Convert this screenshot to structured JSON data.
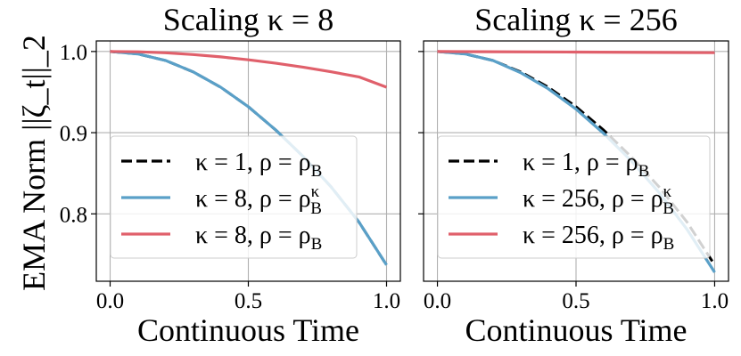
{
  "figure": {
    "ylabel": "EMA Norm ||ζ_t||_2"
  },
  "chart_data": [
    {
      "type": "line",
      "title": "Scaling κ = 8",
      "xlabel": "Continuous Time",
      "ylabel": "EMA Norm ||ζ_t||_2",
      "xlim": [
        -0.05,
        1.05
      ],
      "ylim": [
        0.717,
        1.013
      ],
      "xticks": [
        0.0,
        0.5,
        1.0
      ],
      "xtick_labels": [
        "0.0",
        "0.5",
        "1.0"
      ],
      "yticks": [
        0.8,
        0.9,
        1.0
      ],
      "ytick_labels": [
        "0.8",
        "0.9",
        "1.0"
      ],
      "grid": true,
      "legend_placement": "lower-left",
      "series": [
        {
          "name": "κ = 1, ρ = ρ_B",
          "color": "#000000",
          "style": "dashed",
          "x": [
            0.0,
            0.1,
            0.2,
            0.3,
            0.4,
            0.5,
            0.6,
            0.7,
            0.8,
            0.9,
            1.0
          ],
          "y": [
            1.0,
            0.997,
            0.989,
            0.975,
            0.956,
            0.932,
            0.903,
            0.87,
            0.833,
            0.79,
            0.737
          ]
        },
        {
          "name": "κ = 8, ρ = ρ_B^κ",
          "color": "#5aa0c8",
          "style": "solid",
          "x": [
            0.0,
            0.1,
            0.2,
            0.3,
            0.4,
            0.5,
            0.6,
            0.7,
            0.8,
            0.9,
            1.0
          ],
          "y": [
            1.0,
            0.997,
            0.989,
            0.975,
            0.956,
            0.932,
            0.903,
            0.87,
            0.833,
            0.79,
            0.737
          ]
        },
        {
          "name": "κ = 8, ρ = ρ_B",
          "color": "#e0606b",
          "style": "solid",
          "x": [
            0.0,
            0.1,
            0.2,
            0.3,
            0.4,
            0.5,
            0.6,
            0.7,
            0.8,
            0.9,
            1.0
          ],
          "y": [
            1.0,
            0.9996,
            0.9984,
            0.9962,
            0.9934,
            0.9898,
            0.9855,
            0.9806,
            0.975,
            0.9687,
            0.956
          ]
        }
      ]
    },
    {
      "type": "line",
      "title": "Scaling κ = 256",
      "xlabel": "Continuous Time",
      "xlim": [
        -0.05,
        1.05
      ],
      "ylim": [
        0.717,
        1.013
      ],
      "xticks": [
        0.0,
        0.5,
        1.0
      ],
      "xtick_labels": [
        "0.0",
        "0.5",
        "1.0"
      ],
      "yticks": [
        0.8,
        0.9,
        1.0
      ],
      "ytick_labels": [
        "",
        "",
        ""
      ],
      "grid": true,
      "legend_placement": "lower-left",
      "series": [
        {
          "name": "κ = 1, ρ = ρ_B",
          "color": "#000000",
          "style": "dashed",
          "x": [
            0.0,
            0.1,
            0.2,
            0.3,
            0.4,
            0.5,
            0.6,
            0.7,
            0.8,
            0.9,
            1.0
          ],
          "y": [
            1.0,
            0.997,
            0.989,
            0.975,
            0.956,
            0.932,
            0.903,
            0.87,
            0.833,
            0.79,
            0.737
          ]
        },
        {
          "name": "κ = 256, ρ = ρ_B^κ",
          "color": "#5aa0c8",
          "style": "solid",
          "x": [
            0.0,
            0.1,
            0.2,
            0.3,
            0.4,
            0.5,
            0.6,
            0.7,
            0.8,
            0.9,
            1.0
          ],
          "y": [
            1.0,
            0.997,
            0.989,
            0.974,
            0.954,
            0.929,
            0.899,
            0.865,
            0.826,
            0.781,
            0.728
          ]
        },
        {
          "name": "κ = 256, ρ = ρ_B",
          "color": "#e0606b",
          "style": "solid",
          "x": [
            0.0,
            0.5,
            1.0
          ],
          "y": [
            1.0,
            0.9993,
            0.9985
          ]
        }
      ]
    }
  ]
}
